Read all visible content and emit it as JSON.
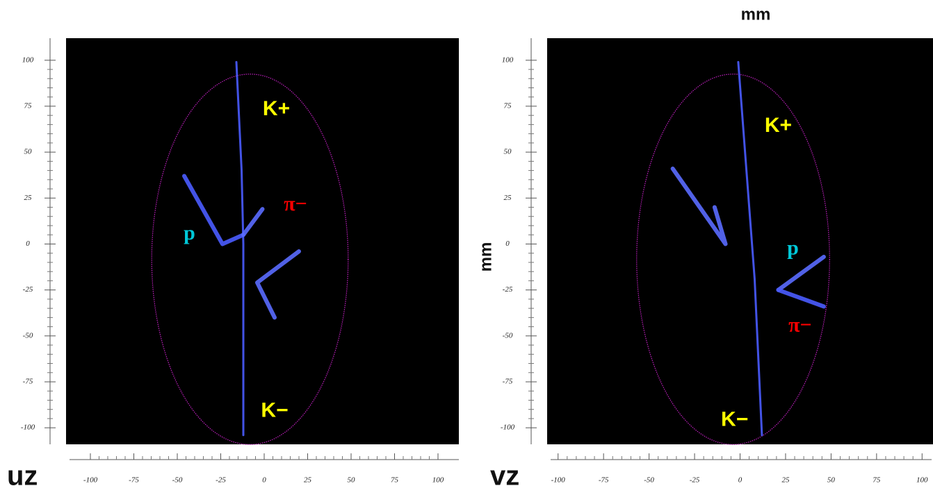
{
  "chart_data": [
    {
      "type": "line",
      "xlabel": "uz",
      "xlim": [
        -114,
        112
      ],
      "ylim": [
        -109,
        112
      ],
      "xticks": [
        -100,
        -75,
        -50,
        -25,
        0,
        25,
        50,
        75,
        100
      ],
      "yticks": [
        100,
        75,
        50,
        25,
        0,
        -25,
        -50,
        -75,
        -100
      ],
      "series": [
        {
          "color": "#4a5cff",
          "x": [
            -16,
            -13,
            -12,
            -12
          ],
          "values": [
            99,
            40,
            0,
            -104
          ]
        },
        {
          "color": "#4a5cff",
          "x": [
            -46,
            -24,
            -12
          ],
          "values": [
            37,
            0,
            5
          ]
        },
        {
          "color": "#5a6cff",
          "x": [
            -12,
            -1
          ],
          "values": [
            5,
            19
          ]
        },
        {
          "color": "#5a6cff",
          "x": [
            20,
            -4,
            6
          ],
          "values": [
            -4,
            -21,
            -40
          ]
        }
      ],
      "annotations": [
        {
          "text": "K+",
          "x": 7,
          "y": 73,
          "color": "#ffff00"
        },
        {
          "text": "π−",
          "x": 18,
          "y": 21,
          "color": "#ff0000"
        },
        {
          "text": "p",
          "x": -43,
          "y": 5,
          "color": "#00c8d8"
        },
        {
          "text": "K−",
          "x": 6,
          "y": -91,
          "color": "#ffff00"
        }
      ]
    },
    {
      "type": "line",
      "title": "mm",
      "xlabel": "vz",
      "ylabel": "mm",
      "xlim": [
        -106,
        106
      ],
      "ylim": [
        -109,
        112
      ],
      "xticks": [
        -100,
        -75,
        -50,
        -25,
        0,
        25,
        50,
        75,
        100
      ],
      "yticks": [
        100,
        75,
        50,
        25,
        0,
        -25,
        -50,
        -75,
        -100
      ],
      "series": [
        {
          "color": "#4a5cff",
          "x": [
            -1,
            8,
            12
          ],
          "values": [
            99,
            -19,
            -104
          ]
        },
        {
          "color": "#5a6cff",
          "x": [
            -37,
            -8,
            -14
          ],
          "values": [
            41,
            0,
            20
          ]
        },
        {
          "color": "#5a6cff",
          "x": [
            46,
            21
          ],
          "values": [
            -7,
            -25
          ]
        },
        {
          "color": "#4a5cff",
          "x": [
            21,
            46
          ],
          "values": [
            -25,
            -34
          ]
        }
      ],
      "annotations": [
        {
          "text": "K+",
          "x": 21,
          "y": 64,
          "color": "#ffff00"
        },
        {
          "text": "p",
          "x": 29,
          "y": -3,
          "color": "#00c8d8"
        },
        {
          "text": "π−",
          "x": 33,
          "y": -45,
          "color": "#ff0000"
        },
        {
          "text": "K−",
          "x": -3,
          "y": -96,
          "color": "#ffff00"
        }
      ]
    }
  ]
}
